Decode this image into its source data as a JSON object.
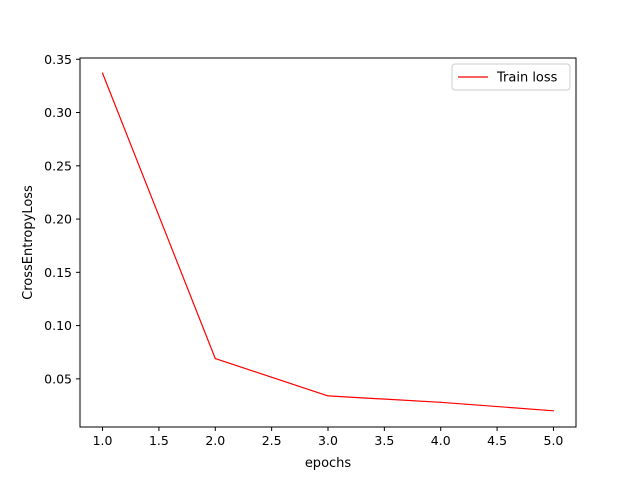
{
  "chart_data": {
    "type": "line",
    "title": "",
    "xlabel": "epochs",
    "ylabel": "CrossEntropyLoss",
    "xlim": [
      0.8,
      5.2
    ],
    "ylim": [
      0.0048,
      0.3512
    ],
    "xticks": [
      1.0,
      1.5,
      2.0,
      2.5,
      3.0,
      3.5,
      4.0,
      4.5,
      5.0
    ],
    "xtick_labels": [
      "1.0",
      "1.5",
      "2.0",
      "2.5",
      "3.0",
      "3.5",
      "4.0",
      "4.5",
      "5.0"
    ],
    "yticks": [
      0.05,
      0.1,
      0.15,
      0.2,
      0.25,
      0.3,
      0.35
    ],
    "ytick_labels": [
      "0.05",
      "0.10",
      "0.15",
      "0.20",
      "0.25",
      "0.30",
      "0.35"
    ],
    "grid": false,
    "legend_position": "top-right",
    "series": [
      {
        "name": "Train loss",
        "color": "#ff0000",
        "x": [
          1.0,
          2.0,
          3.0,
          4.0,
          5.0
        ],
        "y": [
          0.337,
          0.069,
          0.034,
          0.028,
          0.02
        ]
      }
    ]
  }
}
